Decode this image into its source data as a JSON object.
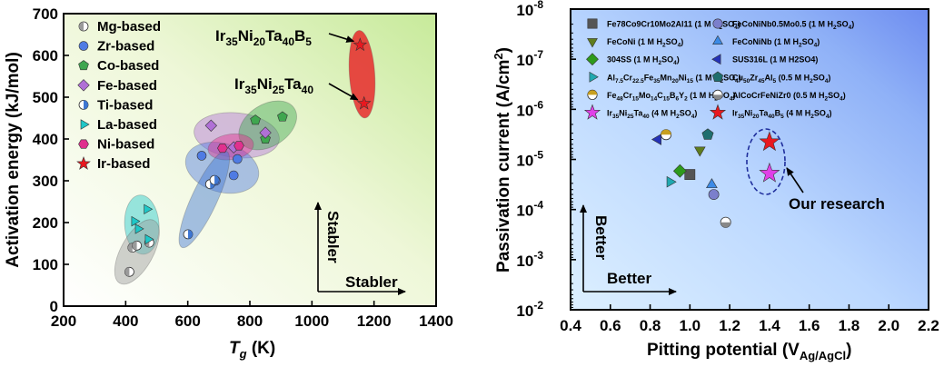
{
  "colors": {
    "mg": "#9a9a9a",
    "zr": "#4f7be3",
    "co": "#3fa64f",
    "fe": "#b070d6",
    "ti": "#3e76d2",
    "la": "#1fc7c7",
    "ni": "#e0318e",
    "ir": "#e8181f"
  },
  "chart_data": [
    {
      "type": "scatter",
      "title": "",
      "xlabel": "T",
      "xlabel_sub": "g",
      "xlabel_unit": " (K)",
      "ylabel": "Activation energy (kJ/mol)",
      "xlim": [
        200,
        1400
      ],
      "ylim": [
        0,
        700
      ],
      "xticks": [
        "200",
        "400",
        "600",
        "800",
        "1000",
        "1200",
        "1400"
      ],
      "yticks": [
        "0",
        "100",
        "200",
        "300",
        "400",
        "500",
        "600",
        "700"
      ],
      "series": [
        {
          "name": "Mg-based",
          "marker": "half-circle",
          "color": "#9a9a9a",
          "x": [
            412,
            422,
            436,
            476
          ],
          "y": [
            82,
            140,
            145,
            152
          ]
        },
        {
          "name": "Zr-based",
          "marker": "circle",
          "color": "#4f7be3",
          "x": [
            645,
            690,
            748,
            760
          ],
          "y": [
            360,
            300,
            313,
            352
          ]
        },
        {
          "name": "Co-based",
          "marker": "pentagon",
          "color": "#3fa64f",
          "x": [
            818,
            850,
            905
          ],
          "y": [
            445,
            400,
            453
          ]
        },
        {
          "name": "Fe-based",
          "marker": "diamond",
          "color": "#b070d6",
          "x": [
            675,
            748,
            850
          ],
          "y": [
            432,
            380,
            415
          ]
        },
        {
          "name": "Ti-based",
          "marker": "half-circle-right",
          "color": "#3e76d2",
          "x": [
            601,
            672,
            686
          ],
          "y": [
            172,
            292,
            302
          ]
        },
        {
          "name": "La-based",
          "marker": "triangle-right",
          "color": "#1fc7c7",
          "x": [
            428,
            440,
            472,
            468
          ],
          "y": [
            203,
            185,
            160,
            232
          ]
        },
        {
          "name": "Ni-based",
          "marker": "hexagon",
          "color": "#e0318e",
          "x": [
            712,
            765
          ],
          "y": [
            378,
            384
          ]
        },
        {
          "name": "Ir-based",
          "marker": "star",
          "color": "#e8181f",
          "x": [
            1155,
            1168
          ],
          "y": [
            625,
            485
          ]
        }
      ],
      "annotations": [
        {
          "text_parts": [
            "Ir",
            "35",
            "Ni",
            "20",
            "Ta",
            "40",
            "B",
            "5"
          ],
          "point": [
            1155,
            625
          ]
        },
        {
          "text_parts": [
            "Ir",
            "35",
            "Ni",
            "25",
            "Ta",
            "40"
          ],
          "point": [
            1168,
            485
          ]
        }
      ],
      "direction_labels": [
        "Stabler",
        "Stabler"
      ]
    },
    {
      "type": "scatter",
      "title": "",
      "xlabel": "Pitting potential (V",
      "xlabel_sub": "Ag/AgCl",
      "xlabel_unit": ")",
      "ylabel": "Passivation current (A/cm",
      "ylabel_sup": "2",
      "ylabel_end": ")",
      "yscale": "log-reversed",
      "xlim": [
        0.4,
        2.2
      ],
      "ylim_exponent": [
        -8,
        -2
      ],
      "xticks": [
        "0.4",
        "0.6",
        "0.8",
        "1.0",
        "1.2",
        "1.4",
        "1.6",
        "1.8",
        "2.0",
        "2.2"
      ],
      "yticks": [
        "10",
        "10",
        "10",
        "10",
        "10",
        "10",
        "10"
      ],
      "ytick_exponents": [
        "-8",
        "-7",
        "-6",
        "-5",
        "-4",
        "-3",
        "-2"
      ],
      "series": [
        {
          "name": "Fe78Co9Cr10Mo2Al11 (1 M H2SO4)",
          "label_parts": [
            [
              "Fe78Co9Cr10Mo2Al11 (1 M H",
              ""
            ],
            [
              "2",
              "sub"
            ],
            [
              "SO",
              ""
            ],
            [
              "4",
              "sub"
            ],
            [
              ")",
              ""
            ]
          ],
          "marker": "square",
          "color": "#555555",
          "x": [
            1.0
          ],
          "y": [
            2e-05
          ]
        },
        {
          "name": "FeCoNiNb0.5Mo0.5 (1 M H2SO4)",
          "label_parts": [
            [
              "FeCoNiNb0.5Mo0.5 (1 M H",
              ""
            ],
            [
              "2",
              "sub"
            ],
            [
              "SO",
              ""
            ],
            [
              "4",
              "sub"
            ],
            [
              ")",
              ""
            ]
          ],
          "marker": "circle",
          "color": "#7b7fcc",
          "x": [
            1.12
          ],
          "y": [
            5e-05
          ]
        },
        {
          "name": "FeCoNi (1 M H2SO4)",
          "label_parts": [
            [
              "FeCoNi (1 M H",
              ""
            ],
            [
              "2",
              "sub"
            ],
            [
              "SO",
              ""
            ],
            [
              "4",
              "sub"
            ],
            [
              ")",
              ""
            ]
          ],
          "marker": "triangle-down",
          "color": "#5f7d1e",
          "x": [
            1.05
          ],
          "y": [
            6.5e-06
          ]
        },
        {
          "name": "FeCoNiNb (1 M H2SO4)",
          "label_parts": [
            [
              "FeCoNiNb (1 M H",
              ""
            ],
            [
              "2",
              "sub"
            ],
            [
              "SO",
              ""
            ],
            [
              "4",
              "sub"
            ],
            [
              ")",
              ""
            ]
          ],
          "marker": "triangle-up",
          "color": "#3b8ae6",
          "x": [
            1.11
          ],
          "y": [
            3.2e-05
          ]
        },
        {
          "name": "304SS (1 M H2SO4)",
          "label_parts": [
            [
              "304SS (1 M H",
              ""
            ],
            [
              "2",
              "sub"
            ],
            [
              "SO",
              ""
            ],
            [
              "4",
              "sub"
            ],
            [
              ")",
              ""
            ]
          ],
          "marker": "diamond",
          "color": "#2e9a1c",
          "x": [
            0.95
          ],
          "y": [
            1.7e-05
          ]
        },
        {
          "name": "SUS316L (1 M H2SO4)",
          "label_parts": [
            [
              "SUS316L (1 M H2SO4)",
              ""
            ]
          ],
          "marker": "triangle-left",
          "color": "#2432b8",
          "x": [
            0.84
          ],
          "y": [
            4e-06
          ]
        },
        {
          "name": "Al7.5Cr22.5Fe35Mn20Ni15 (1 M H2SO4)",
          "label_parts": [
            [
              "Al",
              ""
            ],
            [
              "7.5",
              "sub"
            ],
            [
              "Cr",
              ""
            ],
            [
              "22.5",
              "sub"
            ],
            [
              "Fe",
              ""
            ],
            [
              "35",
              "sub"
            ],
            [
              "Mn",
              ""
            ],
            [
              "20",
              "sub"
            ],
            [
              "Ni",
              ""
            ],
            [
              "15",
              "sub"
            ],
            [
              " (1 M H",
              ""
            ],
            [
              "2",
              "sub"
            ],
            [
              "SO",
              ""
            ],
            [
              "4",
              "sub"
            ],
            [
              ")",
              ""
            ]
          ],
          "marker": "triangle-right",
          "color": "#20a8b0",
          "x": [
            0.9
          ],
          "y": [
            2.8e-05
          ]
        },
        {
          "name": "Cu50Zr45Al5 (0.5 M H2SO4)",
          "label_parts": [
            [
              "Cu",
              ""
            ],
            [
              "50",
              "sub"
            ],
            [
              "Zr",
              ""
            ],
            [
              "45",
              "sub"
            ],
            [
              "Al",
              ""
            ],
            [
              "5",
              "sub"
            ],
            [
              " (0.5 M H",
              ""
            ],
            [
              "2",
              "sub"
            ],
            [
              "SO",
              ""
            ],
            [
              "4",
              "sub"
            ],
            [
              ")",
              ""
            ]
          ],
          "marker": "pentagon",
          "color": "#1f6e6e",
          "x": [
            1.09
          ],
          "y": [
            3.2e-06
          ]
        },
        {
          "name": "Fe48Cr15Mo14C15B6Y2 (1 M H2SO4)",
          "label_parts": [
            [
              "Fe",
              ""
            ],
            [
              "48",
              "sub"
            ],
            [
              "Cr",
              ""
            ],
            [
              "15",
              "sub"
            ],
            [
              "Mo",
              ""
            ],
            [
              "14",
              "sub"
            ],
            [
              "C",
              ""
            ],
            [
              "15",
              "sub"
            ],
            [
              "B",
              ""
            ],
            [
              "6",
              "sub"
            ],
            [
              "Y",
              ""
            ],
            [
              "2",
              "sub"
            ],
            [
              " (1 M H",
              ""
            ],
            [
              "2",
              "sub"
            ],
            [
              "SO",
              ""
            ],
            [
              "4",
              "sub"
            ],
            [
              ")",
              ""
            ]
          ],
          "marker": "half-circle-top",
          "color": "#c8a020",
          "x": [
            0.88
          ],
          "y": [
            3.2e-06
          ]
        },
        {
          "name": "AlCoCrFeNiZr0 (0.5 M H2SO4)",
          "label_parts": [
            [
              "AlCoCrFeNiZr0 (0.5 M H",
              ""
            ],
            [
              "2",
              "sub"
            ],
            [
              "SO",
              ""
            ],
            [
              "4",
              "sub"
            ],
            [
              ")",
              ""
            ]
          ],
          "marker": "half-circle-bottom",
          "color": "#888888",
          "x": [
            1.18
          ],
          "y": [
            0.00018
          ]
        },
        {
          "name": "Ir35Ni25Ta40 (4 M H2SO4)",
          "label_parts": [
            [
              "Ir",
              ""
            ],
            [
              "35",
              "sub"
            ],
            [
              "Ni",
              ""
            ],
            [
              "25",
              "sub"
            ],
            [
              "Ta",
              ""
            ],
            [
              "40",
              "sub"
            ],
            [
              " (4 M H",
              ""
            ],
            [
              "2",
              "sub"
            ],
            [
              "SO",
              ""
            ],
            [
              "4",
              "sub"
            ],
            [
              ")",
              ""
            ]
          ],
          "marker": "star",
          "color": "#e040e8",
          "x": [
            1.4
          ],
          "y": [
            1.9e-05
          ]
        },
        {
          "name": "Ir35Ni20Ta40B5 (4 M H2SO4)",
          "label_parts": [
            [
              "Ir",
              ""
            ],
            [
              "35",
              "sub"
            ],
            [
              "Ni",
              ""
            ],
            [
              "20",
              "sub"
            ],
            [
              "Ta",
              ""
            ],
            [
              "40",
              "sub"
            ],
            [
              "B",
              ""
            ],
            [
              "5",
              "sub"
            ],
            [
              " (4 M H",
              ""
            ],
            [
              "2",
              "sub"
            ],
            [
              "SO",
              ""
            ],
            [
              "4",
              "sub"
            ],
            [
              ")",
              ""
            ]
          ],
          "marker": "star",
          "color": "#e8181f",
          "x": [
            1.4
          ],
          "y": [
            4.5e-06
          ]
        }
      ],
      "annotation": "Our research",
      "direction_labels": [
        "Better",
        "Better"
      ]
    }
  ]
}
